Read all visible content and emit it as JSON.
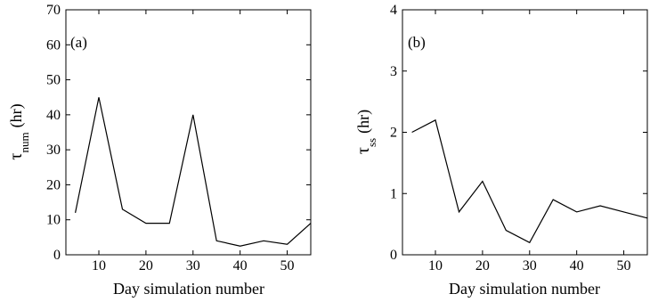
{
  "chart_data": [
    {
      "type": "line",
      "panel_label": "(a)",
      "xlabel": "Day simulation number",
      "ylabel_symbol": "τ",
      "ylabel_subscript": "num",
      "ylabel_unit": "(hr)",
      "xlim": [
        3,
        55
      ],
      "ylim": [
        0,
        70
      ],
      "xticks": [
        10,
        20,
        30,
        40,
        50
      ],
      "yticks": [
        0,
        10,
        20,
        30,
        40,
        50,
        60,
        70
      ],
      "grid": false,
      "series": [
        {
          "x": [
            5,
            10,
            15,
            20,
            25,
            30,
            35,
            40,
            45,
            50,
            55
          ],
          "y": [
            12,
            45,
            13,
            9,
            9,
            40,
            4,
            2.5,
            4,
            3,
            9
          ]
        }
      ]
    },
    {
      "type": "line",
      "panel_label": "(b)",
      "xlabel": "Day simulation number",
      "ylabel_symbol": "τ",
      "ylabel_subscript": "ss",
      "ylabel_unit": "(hr)",
      "xlim": [
        3,
        55
      ],
      "ylim": [
        0,
        4
      ],
      "xticks": [
        10,
        20,
        30,
        40,
        50
      ],
      "yticks": [
        0,
        1,
        2,
        3,
        4
      ],
      "grid": false,
      "series": [
        {
          "x": [
            5,
            10,
            15,
            20,
            25,
            30,
            35,
            40,
            45,
            50,
            55
          ],
          "y": [
            2.0,
            2.2,
            0.7,
            1.2,
            0.4,
            0.2,
            0.9,
            0.7,
            0.8,
            0.7,
            0.6
          ]
        }
      ]
    }
  ]
}
